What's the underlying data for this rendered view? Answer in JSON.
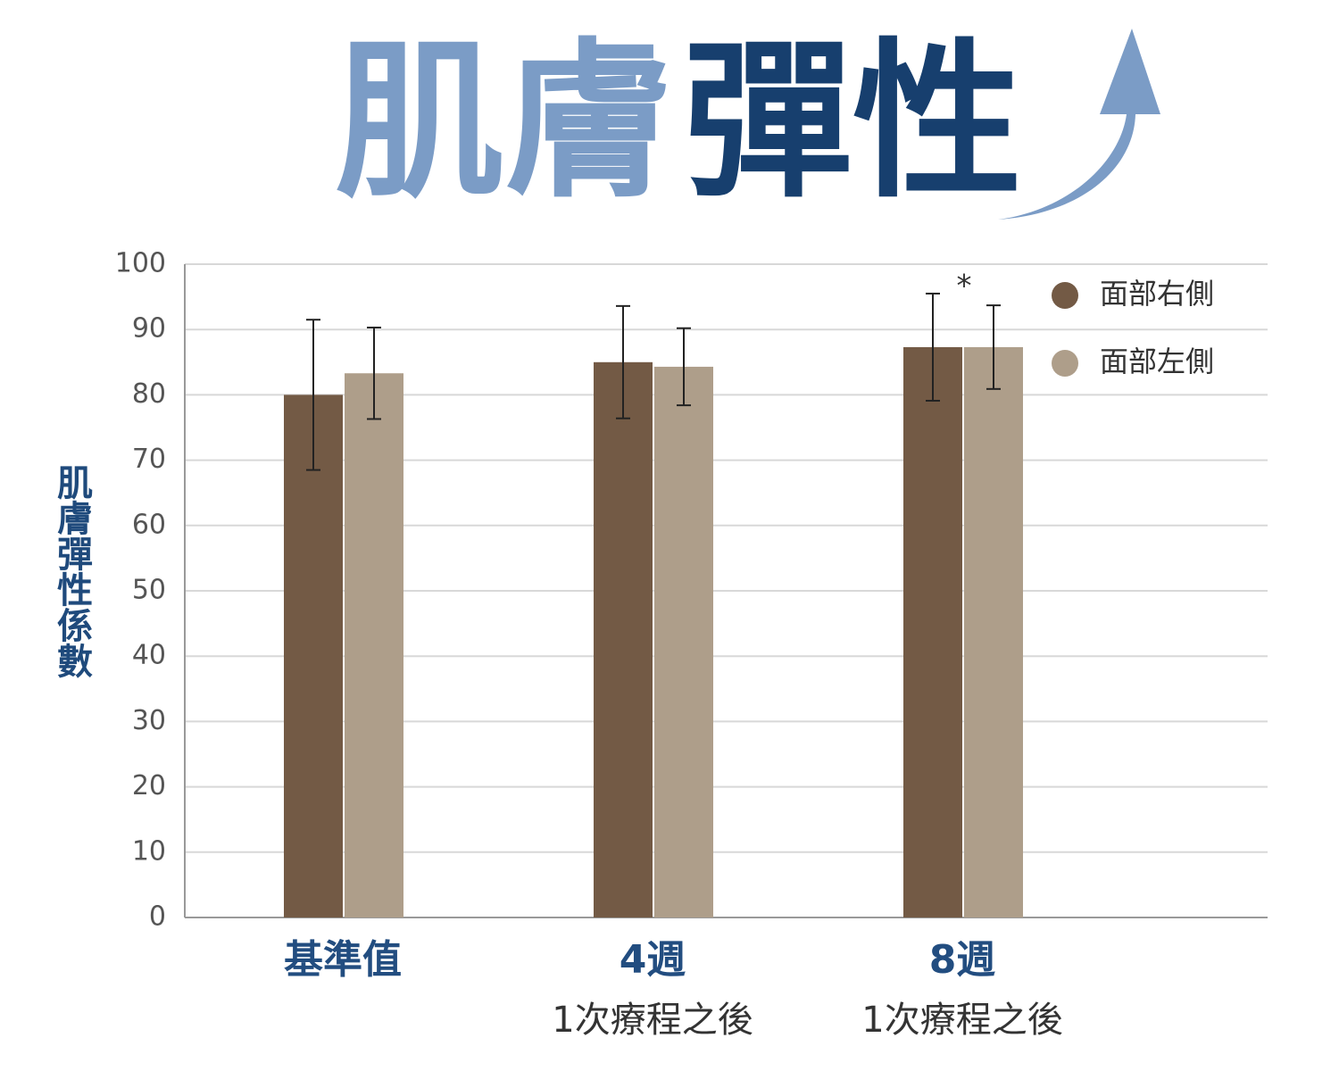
{
  "chart_data": {
    "type": "bar",
    "title": [
      "肌膚",
      "彈性"
    ],
    "y_label": "肌膚彈性係數",
    "categories": [
      "基準值",
      "4週",
      "8週"
    ],
    "category_sublabels": [
      null,
      "1次療程之後",
      "1次療程之後"
    ],
    "series": [
      {
        "name": "面部右側",
        "color": "#735a45",
        "values": [
          80,
          85,
          87.3
        ],
        "errors": [
          11.5,
          8.6,
          8.2
        ]
      },
      {
        "name": "面部左側",
        "color": "#ae9e8a",
        "values": [
          83.3,
          84.3,
          87.3
        ],
        "errors": [
          7,
          5.9,
          6.4
        ]
      }
    ],
    "annotations": [
      "*"
    ],
    "ylim": [
      0,
      100
    ],
    "yticks": [
      0,
      10,
      20,
      30,
      40,
      50,
      60,
      70,
      80,
      90,
      100
    ],
    "grid": true
  }
}
